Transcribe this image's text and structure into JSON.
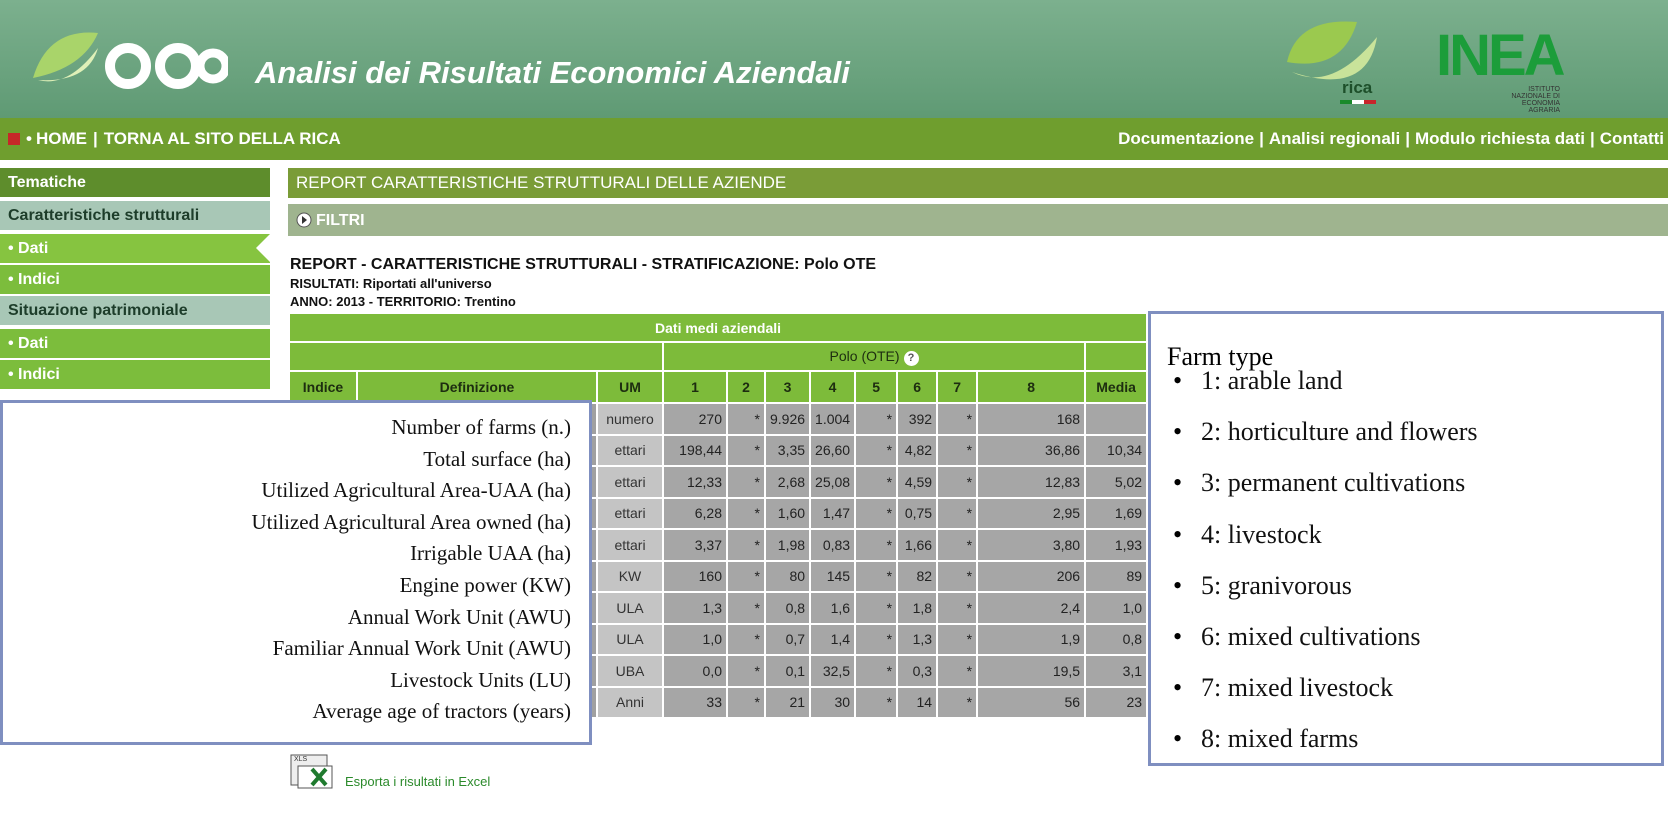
{
  "header": {
    "title": "Analisi dei Risultati Economici Aziendali",
    "rica_logo": "rica",
    "inea_logo": "INEA",
    "inea_subtitle": "ISTITUTO NAZIONALE DI ECONOMIA AGRARIA"
  },
  "nav": {
    "bullet": "•",
    "separator": "|",
    "left": [
      "HOME",
      "TORNA AL SITO DELLA RICA"
    ],
    "right": [
      "Documentazione",
      "Analisi regionali",
      "Modulo richiesta dati",
      "Contatti"
    ]
  },
  "sidebar": {
    "heading": "Tematiche",
    "sections": [
      {
        "title": "Caratteristiche strutturali",
        "items": [
          "• Dati",
          "• Indici"
        ]
      },
      {
        "title": "Situazione patrimoniale",
        "items": [
          "• Dati",
          "• Indici"
        ]
      }
    ]
  },
  "main": {
    "report_bar": "REPORT CARATTERISTICHE STRUTTURALI DELLE AZIENDE",
    "filter": "FILTRI",
    "report_title": "REPORT - CARATTERISTICHE STRUTTURALI - STRATIFICAZIONE: Polo OTE",
    "results": "RISULTATI: Riportati all'universo",
    "year_territory": "ANNO: 2013 - TERRITORIO: Trentino",
    "export": "Esporta i risultati in Excel",
    "export_icon": "XLS"
  },
  "table": {
    "caption": "Dati medi aziendali",
    "group": "Polo (OTE)",
    "help": "?",
    "headers": [
      "Indice",
      "Definizione",
      "UM",
      "1",
      "2",
      "3",
      "4",
      "5",
      "6",
      "7",
      "8",
      "Media"
    ],
    "rows": [
      [
        "numero",
        "270",
        "*",
        "9.926",
        "1.004",
        "*",
        "392",
        "*",
        "168",
        null
      ],
      [
        "ettari",
        "198,44",
        "*",
        "3,35",
        "26,60",
        "*",
        "4,82",
        "*",
        "36,86",
        "10,34"
      ],
      [
        "ettari",
        "12,33",
        "*",
        "2,68",
        "25,08",
        "*",
        "4,59",
        "*",
        "12,83",
        "5,02"
      ],
      [
        "ettari",
        "6,28",
        "*",
        "1,60",
        "1,47",
        "*",
        "0,75",
        "*",
        "2,95",
        "1,69"
      ],
      [
        "ettari",
        "3,37",
        "*",
        "1,98",
        "0,83",
        "*",
        "1,66",
        "*",
        "3,80",
        "1,93"
      ],
      [
        "KW",
        "160",
        "*",
        "80",
        "145",
        "*",
        "82",
        "*",
        "206",
        "89"
      ],
      [
        "ULA",
        "1,3",
        "*",
        "0,8",
        "1,6",
        "*",
        "1,8",
        "*",
        "2,4",
        "1,0"
      ],
      [
        "ULA",
        "1,0",
        "*",
        "0,7",
        "1,4",
        "*",
        "1,3",
        "*",
        "1,9",
        "0,8"
      ],
      [
        "UBA",
        "0,0",
        "*",
        "0,1",
        "32,5",
        "*",
        "0,3",
        "*",
        "19,5",
        "3,1"
      ],
      [
        "Anni",
        "33",
        "*",
        "21",
        "30",
        "*",
        "14",
        "*",
        "56",
        "23"
      ]
    ]
  },
  "overlay_left": {
    "labels": [
      "Number of farms (n.)",
      "Total surface (ha)",
      "Utilized Agricultural Area-UAA (ha)",
      "Utilized Agricultural Area owned (ha)",
      "Irrigable UAA (ha)",
      "Engine power (KW)",
      "Annual Work Unit (AWU)",
      "Familiar Annual Work Unit (AWU)",
      "Livestock Units (LU)",
      "Average age of tractors (years)"
    ]
  },
  "overlay_right": {
    "title": "Farm type",
    "bullet": "•",
    "items": [
      "1: arable land",
      "2: horticulture and flowers",
      "3: permanent cultivations",
      "4: livestock",
      "5: granivorous",
      "6: mixed cultivations",
      "7: mixed livestock",
      "8: mixed farms"
    ]
  }
}
